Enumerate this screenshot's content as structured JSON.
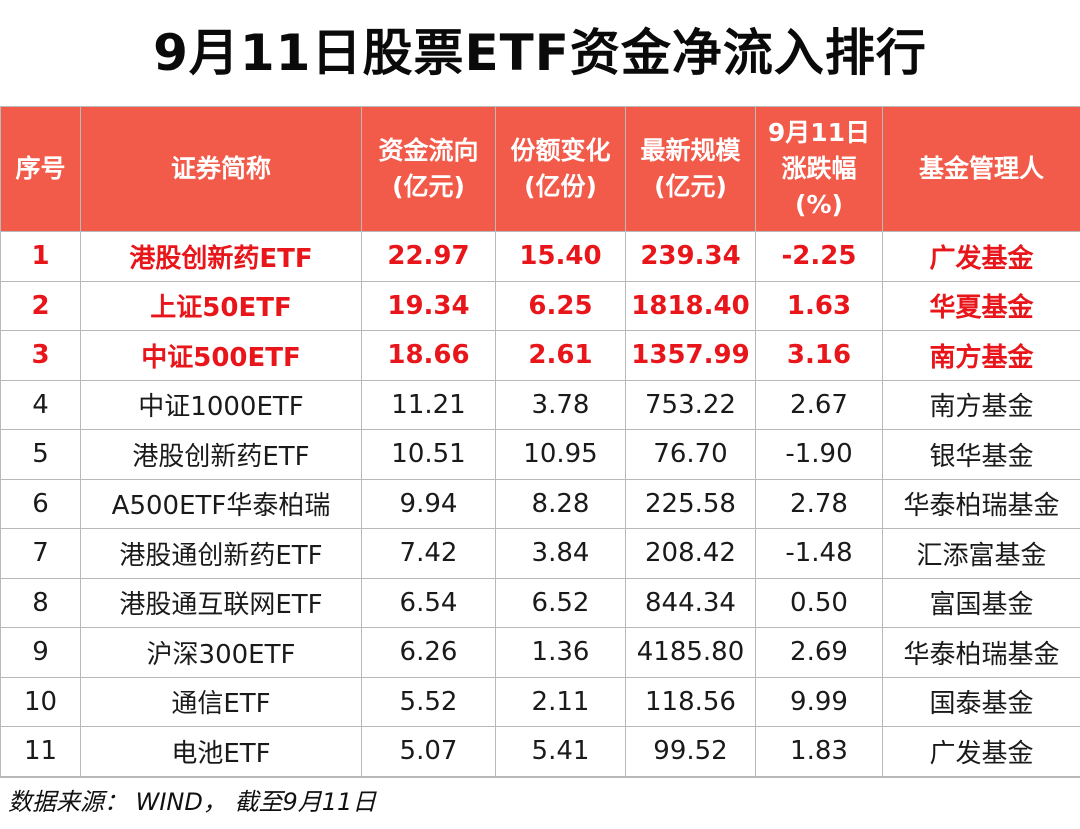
{
  "title": "9月11日股票ETF资金净流入排行",
  "headers": {
    "rank": "序号",
    "name": "证券简称",
    "flow": [
      "资金流向",
      "(亿元)"
    ],
    "share": [
      "份额变化",
      "(亿份)"
    ],
    "scale": [
      "最新规模",
      "(亿元)"
    ],
    "change": [
      "9月11日",
      "涨跌幅",
      "(%)"
    ],
    "manager": "基金管理人"
  },
  "rows": [
    {
      "rank": "1",
      "name": "港股创新药ETF",
      "flow": "22.97",
      "share": "15.40",
      "scale": "239.34",
      "change": "-2.25",
      "manager": "广发基金",
      "highlight": true
    },
    {
      "rank": "2",
      "name": "上证50ETF",
      "flow": "19.34",
      "share": "6.25",
      "scale": "1818.40",
      "change": "1.63",
      "manager": "华夏基金",
      "highlight": true
    },
    {
      "rank": "3",
      "name": "中证500ETF",
      "flow": "18.66",
      "share": "2.61",
      "scale": "1357.99",
      "change": "3.16",
      "manager": "南方基金",
      "highlight": true
    },
    {
      "rank": "4",
      "name": "中证1000ETF",
      "flow": "11.21",
      "share": "3.78",
      "scale": "753.22",
      "change": "2.67",
      "manager": "南方基金",
      "highlight": false
    },
    {
      "rank": "5",
      "name": "港股创新药ETF",
      "flow": "10.51",
      "share": "10.95",
      "scale": "76.70",
      "change": "-1.90",
      "manager": "银华基金",
      "highlight": false
    },
    {
      "rank": "6",
      "name": "A500ETF华泰柏瑞",
      "flow": "9.94",
      "share": "8.28",
      "scale": "225.58",
      "change": "2.78",
      "manager": "华泰柏瑞基金",
      "highlight": false
    },
    {
      "rank": "7",
      "name": "港股通创新药ETF",
      "flow": "7.42",
      "share": "3.84",
      "scale": "208.42",
      "change": "-1.48",
      "manager": "汇添富基金",
      "highlight": false
    },
    {
      "rank": "8",
      "name": "港股通互联网ETF",
      "flow": "6.54",
      "share": "6.52",
      "scale": "844.34",
      "change": "0.50",
      "manager": "富国基金",
      "highlight": false
    },
    {
      "rank": "9",
      "name": "沪深300ETF",
      "flow": "6.26",
      "share": "1.36",
      "scale": "4185.80",
      "change": "2.69",
      "manager": "华泰柏瑞基金",
      "highlight": false
    },
    {
      "rank": "10",
      "name": "通信ETF",
      "flow": "5.52",
      "share": "2.11",
      "scale": "118.56",
      "change": "9.99",
      "manager": "国泰基金",
      "highlight": false
    },
    {
      "rank": "11",
      "name": "电池ETF",
      "flow": "5.07",
      "share": "5.41",
      "scale": "99.52",
      "change": "1.83",
      "manager": "广发基金",
      "highlight": false
    }
  ],
  "source": "数据来源： WIND， 截至9月11日",
  "colors": {
    "header_bg": "#f25a4a",
    "highlight_text": "#e8161a"
  }
}
